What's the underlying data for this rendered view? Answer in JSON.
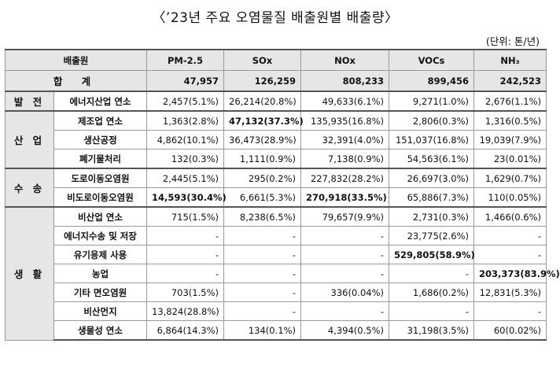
{
  "title": "〈’23년 주요 오염물질 배출원별 배출량〉",
  "unit": "(단위: 톤/년)",
  "headers": [
    "배출원",
    "PM-2.5",
    "SOx",
    "NOx",
    "VOCs",
    "NH₃"
  ],
  "total": {
    "label": "합  계",
    "values": [
      "47,957",
      "126,259",
      "808,233",
      "899,456",
      "242,523"
    ]
  },
  "groups": {
    "power": "발 전",
    "industry": "산 업",
    "transport": "수 송",
    "living": "생 활"
  },
  "rows": [
    {
      "label": "에너지산업 연소",
      "values": [
        "2,457(5.1%)",
        "26,214(20.8%)",
        "49,633(6.1%)",
        "9,271(1.0%)",
        "2,676(1.1%)"
      ]
    },
    {
      "label": "제조업 연소",
      "values": [
        "1,363(2.8%)",
        "47,132(37.3%)",
        "135,935(16.8%)",
        "2,806(0.3%)",
        "1,316(0.5%)"
      ]
    },
    {
      "label": "생산공정",
      "values": [
        "4,862(10.1%)",
        "36,473(28.9%)",
        "32,391(4.0%)",
        "151,037(16.8%)",
        "19,039(7.9%)"
      ]
    },
    {
      "label": "폐기물처리",
      "values": [
        "132(0.3%)",
        "1,111(0.9%)",
        "7,138(0.9%)",
        "54,563(6.1%)",
        "23(0.01%)"
      ]
    },
    {
      "label": "도로이동오염원",
      "values": [
        "2,445(5.1%)",
        "295(0.2%)",
        "227,832(28.2%)",
        "26,697(3.0%)",
        "1,629(0.7%)"
      ]
    },
    {
      "label": "비도로이동오염원",
      "values": [
        "14,593(30.4%)",
        "6,661(5.3%)",
        "270,918(33.5%)",
        "65,886(7.3%)",
        "110(0.05%)"
      ]
    },
    {
      "label": "비산업 연소",
      "values": [
        "715(1.5%)",
        "8,238(6.5%)",
        "79,657(9.9%)",
        "2,731(0.3%)",
        "1,466(0.6%)"
      ]
    },
    {
      "label": "에너지수송 및 저장",
      "values": [
        "-",
        "-",
        "-",
        "23,775(2.6%)",
        "-"
      ]
    },
    {
      "label": "유기용제 사용",
      "values": [
        "-",
        "-",
        "-",
        "529,805(58.9%)",
        "-"
      ]
    },
    {
      "label": "농업",
      "values": [
        "-",
        "-",
        "-",
        "-",
        "203,373(83.9%)"
      ]
    },
    {
      "label": "기타 면오염원",
      "values": [
        "703(1.5%)",
        "-",
        "336(0.04%)",
        "1,686(0.2%)",
        "12,831(5.3%)"
      ]
    },
    {
      "label": "비산먼지",
      "values": [
        "13,824(28.8%)",
        "-",
        "-",
        "-",
        "-"
      ]
    },
    {
      "label": "생물성 연소",
      "values": [
        "6,864(14.3%)",
        "134(0.1%)",
        "4,394(0.5%)",
        "31,198(3.5%)",
        "60(0.02%)"
      ]
    }
  ]
}
